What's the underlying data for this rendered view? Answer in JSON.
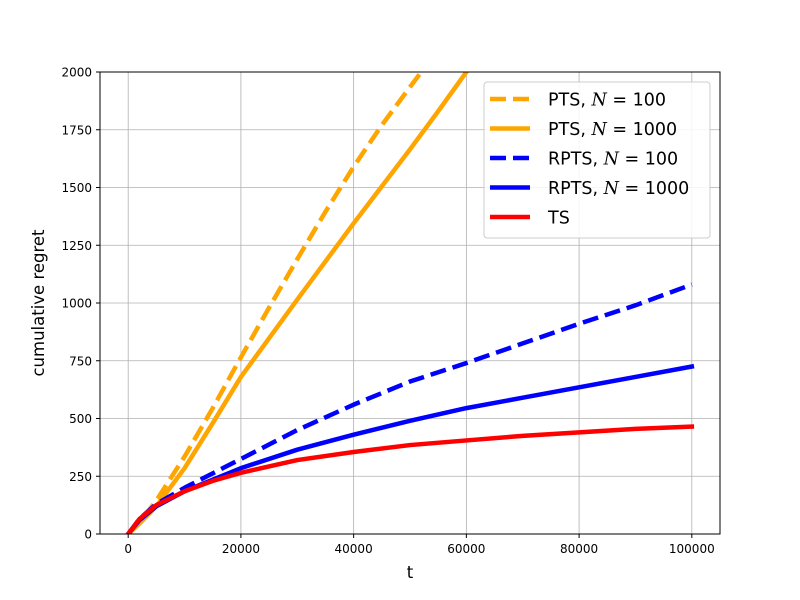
{
  "chart_data": {
    "type": "line",
    "title": "",
    "xlabel": "t",
    "ylabel": "cumulative regret",
    "xlim": [
      -5000,
      105000
    ],
    "ylim": [
      0,
      2000
    ],
    "xticks": [
      0,
      20000,
      40000,
      60000,
      80000,
      100000
    ],
    "xtick_labels": [
      "0",
      "20000",
      "40000",
      "60000",
      "80000",
      "100000"
    ],
    "yticks": [
      0,
      250,
      500,
      750,
      1000,
      1250,
      1500,
      1750,
      2000
    ],
    "ytick_labels": [
      "0",
      "250",
      "500",
      "750",
      "1000",
      "1250",
      "1500",
      "1750",
      "2000"
    ],
    "grid": true,
    "legend_position": "top-right",
    "series": [
      {
        "name": "PTS, N = 100",
        "legend_prefix": "PTS, ",
        "legend_math": "N",
        "legend_suffix": " = 100",
        "color": "#ffa500",
        "style": "dashed",
        "x": [
          0,
          2000,
          5000,
          10000,
          15000,
          20000,
          25000,
          30000,
          35000,
          40000,
          45000,
          50000,
          52000
        ],
        "y": [
          0,
          50,
          145,
          335,
          545,
          765,
          980,
          1190,
          1395,
          1590,
          1770,
          1935,
          2000
        ]
      },
      {
        "name": "PTS, N = 1000",
        "legend_prefix": "PTS, ",
        "legend_math": "N",
        "legend_suffix": " = 1000",
        "color": "#ffa500",
        "style": "solid",
        "x": [
          0,
          2000,
          5000,
          10000,
          15000,
          20000,
          30000,
          40000,
          50000,
          55000,
          60000
        ],
        "y": [
          0,
          45,
          120,
          285,
          480,
          680,
          1015,
          1345,
          1665,
          1830,
          2000
        ]
      },
      {
        "name": "RPTS, N = 100",
        "legend_prefix": "RPTS, ",
        "legend_math": "N",
        "legend_suffix": " = 100",
        "color": "#0000ff",
        "style": "dashed",
        "x": [
          0,
          2000,
          5000,
          10000,
          20000,
          30000,
          40000,
          50000,
          60000,
          70000,
          80000,
          90000,
          100000
        ],
        "y": [
          0,
          65,
          130,
          200,
          325,
          450,
          560,
          660,
          740,
          825,
          910,
          990,
          1080
        ]
      },
      {
        "name": "RPTS, N = 1000",
        "legend_prefix": "RPTS, ",
        "legend_math": "N",
        "legend_suffix": " = 1000",
        "color": "#0000ff",
        "style": "solid",
        "x": [
          0,
          2000,
          5000,
          10000,
          20000,
          30000,
          40000,
          50000,
          60000,
          70000,
          80000,
          90000,
          100000
        ],
        "y": [
          0,
          60,
          120,
          185,
          285,
          365,
          430,
          490,
          545,
          590,
          635,
          680,
          725
        ]
      },
      {
        "name": "TS",
        "legend_prefix": "TS",
        "legend_math": "",
        "legend_suffix": "",
        "color": "#ff0000",
        "style": "solid",
        "x": [
          0,
          2000,
          5000,
          10000,
          15000,
          20000,
          30000,
          40000,
          50000,
          60000,
          70000,
          80000,
          90000,
          100000
        ],
        "y": [
          0,
          65,
          125,
          185,
          230,
          265,
          320,
          355,
          385,
          405,
          425,
          440,
          455,
          465
        ]
      }
    ]
  }
}
